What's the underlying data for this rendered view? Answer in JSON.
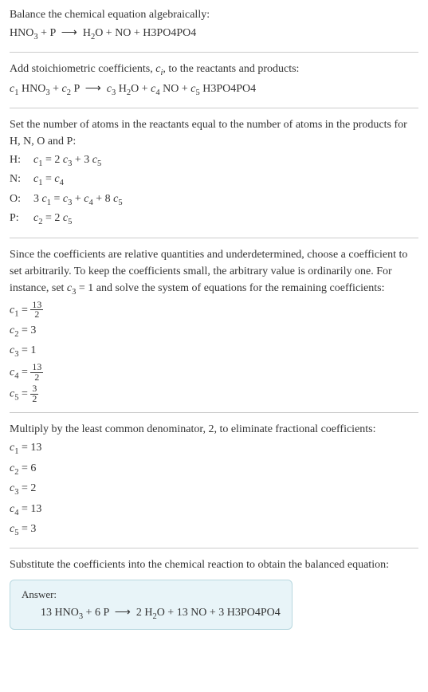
{
  "intro": {
    "line1": "Balance the chemical equation algebraically:",
    "equation": "HNO<sub>3</sub> + P &nbsp;⟶&nbsp; H<sub>2</sub>O + NO + H3PO4PO4"
  },
  "stoich": {
    "line1": "Add stoichiometric coefficients, <span class=\"italic\">c<sub>i</sub></span>, to the reactants and products:",
    "equation": "<span class=\"italic\">c</span><sub>1</sub> HNO<sub>3</sub> + <span class=\"italic\">c</span><sub>2</sub> P &nbsp;⟶&nbsp; <span class=\"italic\">c</span><sub>3</sub> H<sub>2</sub>O + <span class=\"italic\">c</span><sub>4</sub> NO + <span class=\"italic\">c</span><sub>5</sub> H3PO4PO4"
  },
  "atoms": {
    "intro": "Set the number of atoms in the reactants equal to the number of atoms in the products for H, N, O and P:",
    "rows": [
      {
        "label": "H:",
        "value": "<span class=\"italic\">c</span><sub>1</sub> = 2 <span class=\"italic\">c</span><sub>3</sub> + 3 <span class=\"italic\">c</span><sub>5</sub>"
      },
      {
        "label": "N:",
        "value": "<span class=\"italic\">c</span><sub>1</sub> = <span class=\"italic\">c</span><sub>4</sub>"
      },
      {
        "label": "O:",
        "value": "3 <span class=\"italic\">c</span><sub>1</sub> = <span class=\"italic\">c</span><sub>3</sub> + <span class=\"italic\">c</span><sub>4</sub> + 8 <span class=\"italic\">c</span><sub>5</sub>"
      },
      {
        "label": "P:",
        "value": "<span class=\"italic\">c</span><sub>2</sub> = 2 <span class=\"italic\">c</span><sub>5</sub>"
      }
    ]
  },
  "solve": {
    "intro": "Since the coefficients are relative quantities and underdetermined, choose a coefficient to set arbitrarily. To keep the coefficients small, the arbitrary value is ordinarily one. For instance, set <span class=\"italic\">c</span><sub>3</sub> = 1 and solve the system of equations for the remaining coefficients:",
    "lines": [
      "<span class=\"italic\">c</span><sub>1</sub> = <span class=\"frac\"><span class=\"num\">13</span><span class=\"den\">2</span></span>",
      "<span class=\"italic\">c</span><sub>2</sub> = 3",
      "<span class=\"italic\">c</span><sub>3</sub> = 1",
      "<span class=\"italic\">c</span><sub>4</sub> = <span class=\"frac\"><span class=\"num\">13</span><span class=\"den\">2</span></span>",
      "<span class=\"italic\">c</span><sub>5</sub> = <span class=\"frac\"><span class=\"num\">3</span><span class=\"den\">2</span></span>"
    ]
  },
  "multiply": {
    "intro": "Multiply by the least common denominator, 2, to eliminate fractional coefficients:",
    "lines": [
      "<span class=\"italic\">c</span><sub>1</sub> = 13",
      "<span class=\"italic\">c</span><sub>2</sub> = 6",
      "<span class=\"italic\">c</span><sub>3</sub> = 2",
      "<span class=\"italic\">c</span><sub>4</sub> = 13",
      "<span class=\"italic\">c</span><sub>5</sub> = 3"
    ]
  },
  "substitute": {
    "intro": "Substitute the coefficients into the chemical reaction to obtain the balanced equation:"
  },
  "answer": {
    "label": "Answer:",
    "content": "13 HNO<sub>3</sub> + 6 P &nbsp;⟶&nbsp; 2 H<sub>2</sub>O + 13 NO + 3 H3PO4PO4"
  },
  "colors": {
    "text": "#333333",
    "divider": "#cccccc",
    "answer_bg": "#e8f4f8",
    "answer_border": "#b8d8e0"
  }
}
